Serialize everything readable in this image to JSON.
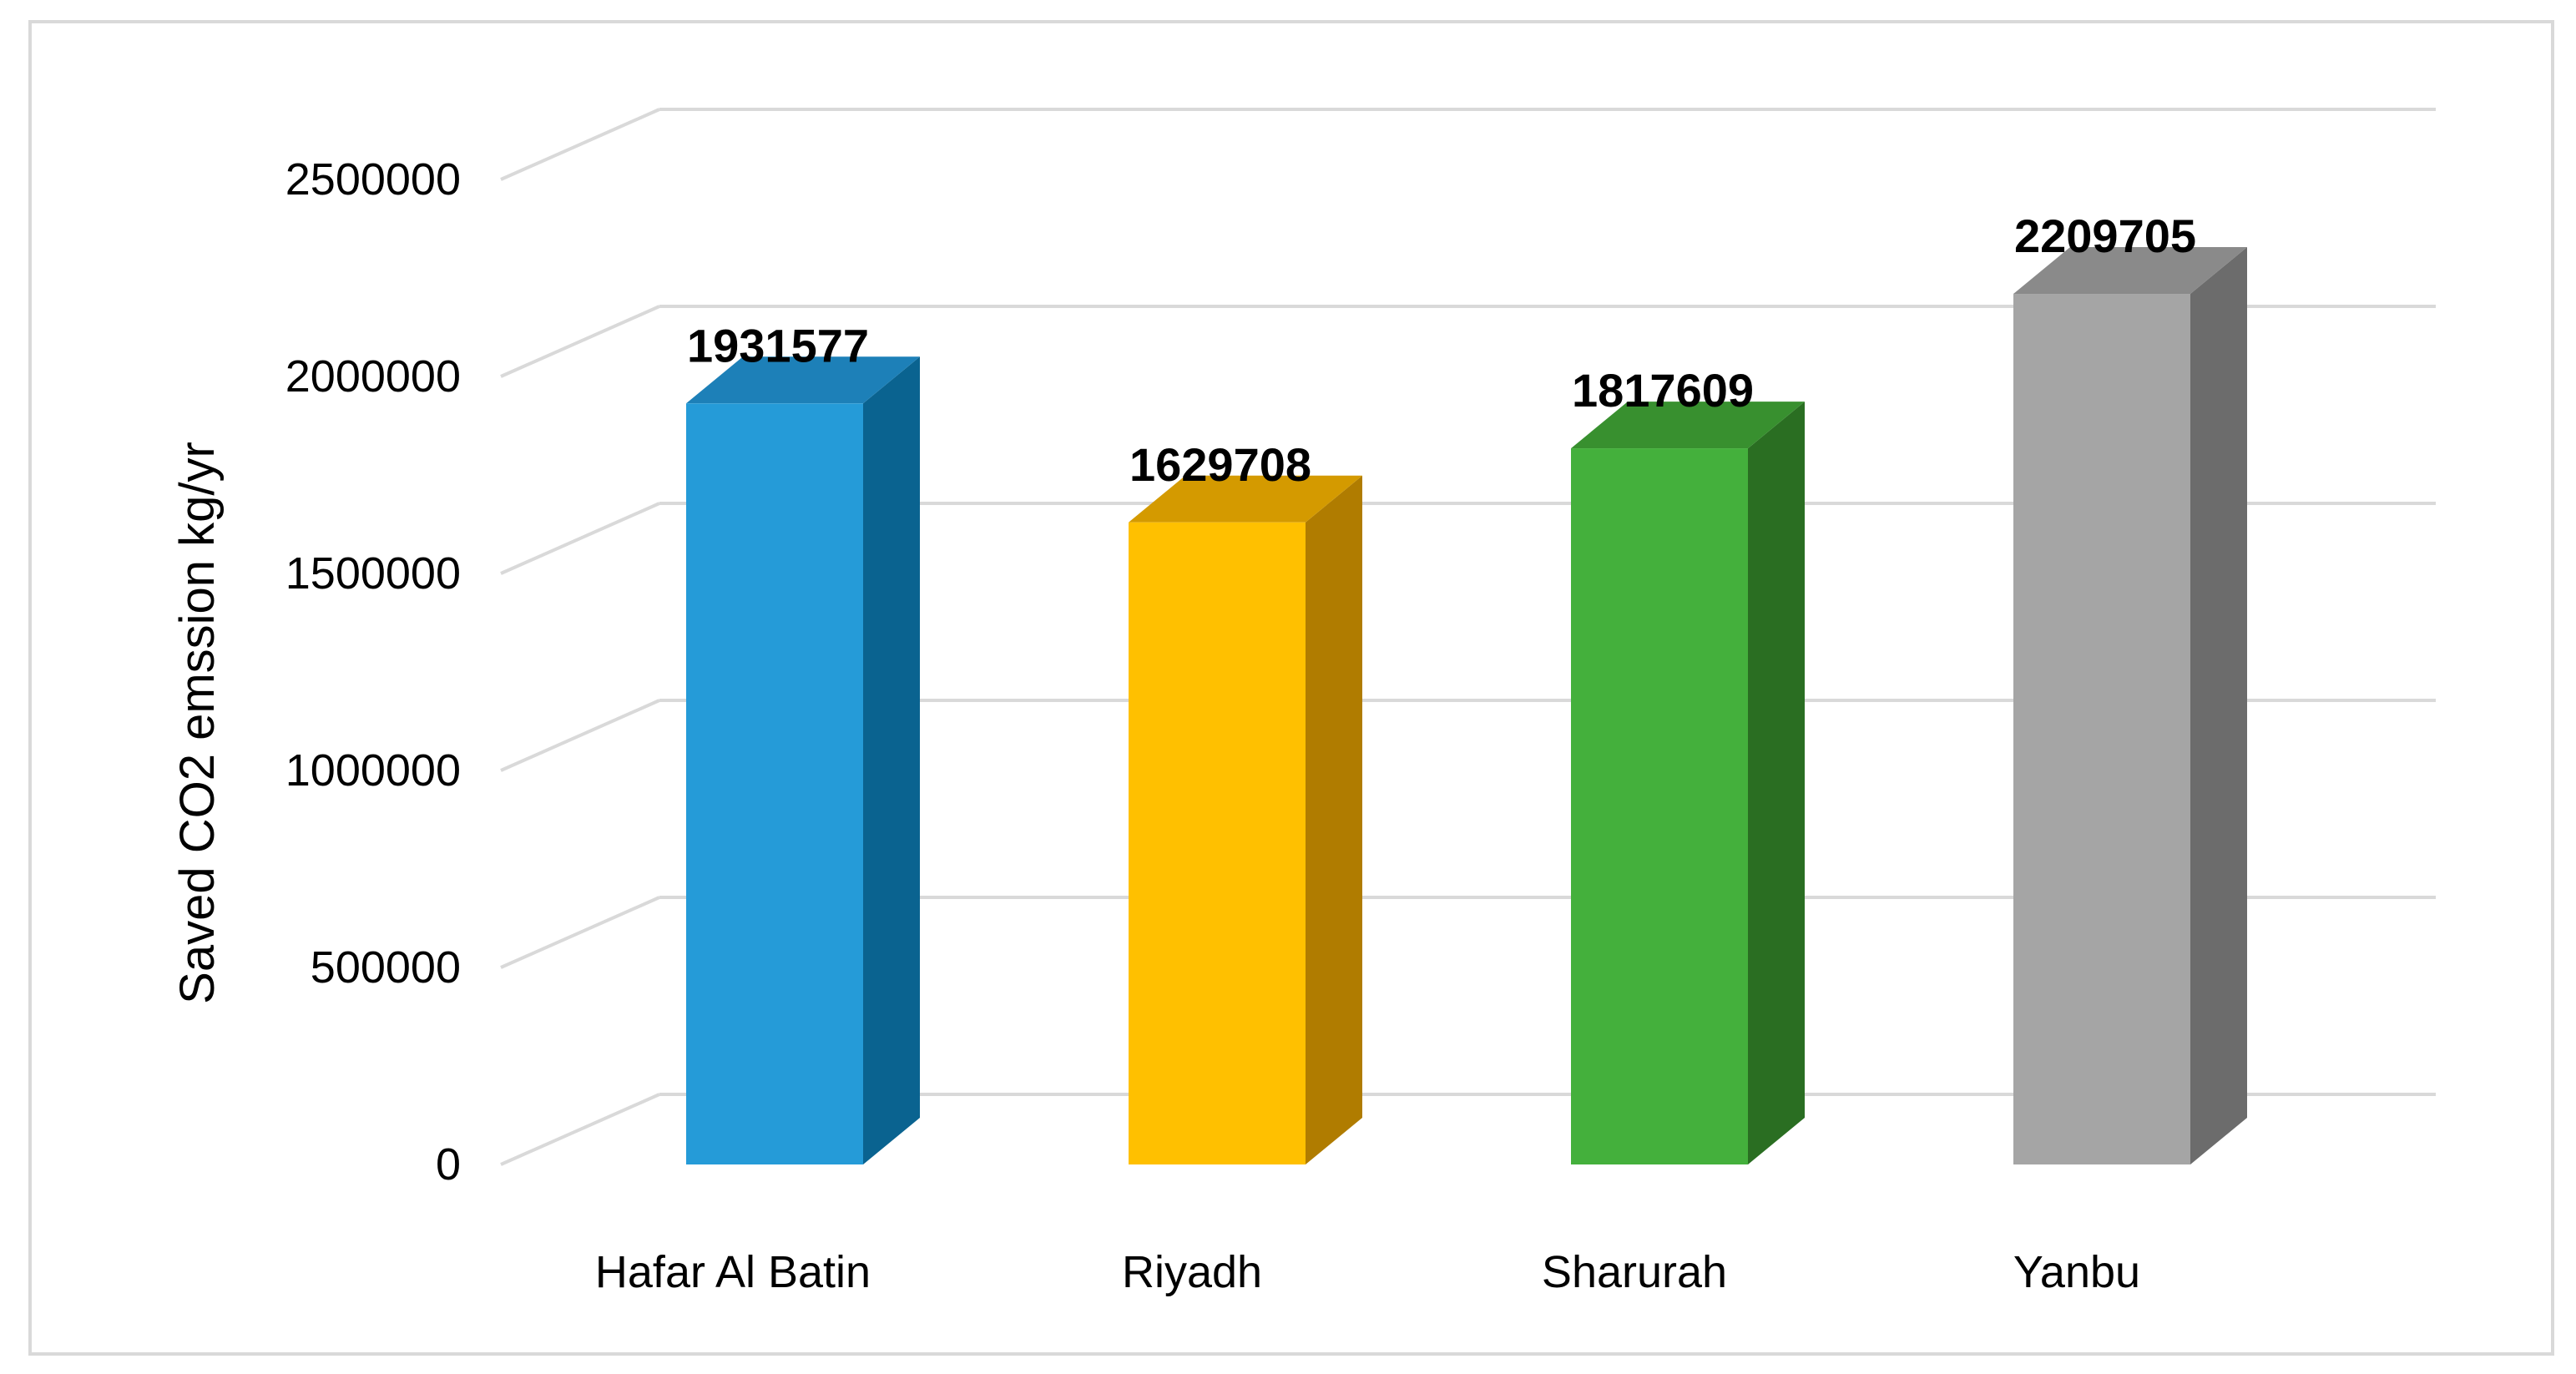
{
  "chart_data": {
    "type": "bar",
    "style": "3d-column",
    "categories": [
      "Hafar Al Batin",
      "Riyadh",
      "Sharurah",
      "Yanbu"
    ],
    "values": [
      1931577,
      1629708,
      1817609,
      2209705
    ],
    "data_labels": [
      "1931577",
      "1629708",
      "1817609",
      "2209705"
    ],
    "ylabel": "Saved CO2 emssion  kg/yr",
    "ylim": [
      0,
      2500000
    ],
    "yticks": [
      0,
      500000,
      1000000,
      1500000,
      2000000,
      2500000
    ],
    "ytick_labels": [
      "0",
      "500000",
      "1000000",
      "1500000",
      "2000000",
      "2500000"
    ],
    "grid": true,
    "legend": "none",
    "colors": {
      "front": [
        "#259bd8",
        "#ffc000",
        "#44b03c",
        "#a5a5a5"
      ],
      "side": [
        "#0a6390",
        "#b07c00",
        "#2a6e22",
        "#6c6c6c"
      ],
      "top": [
        "#1d80b8",
        "#d49a00",
        "#38902f",
        "#8a8a8a"
      ],
      "gridline": "#d9d9d9"
    }
  }
}
